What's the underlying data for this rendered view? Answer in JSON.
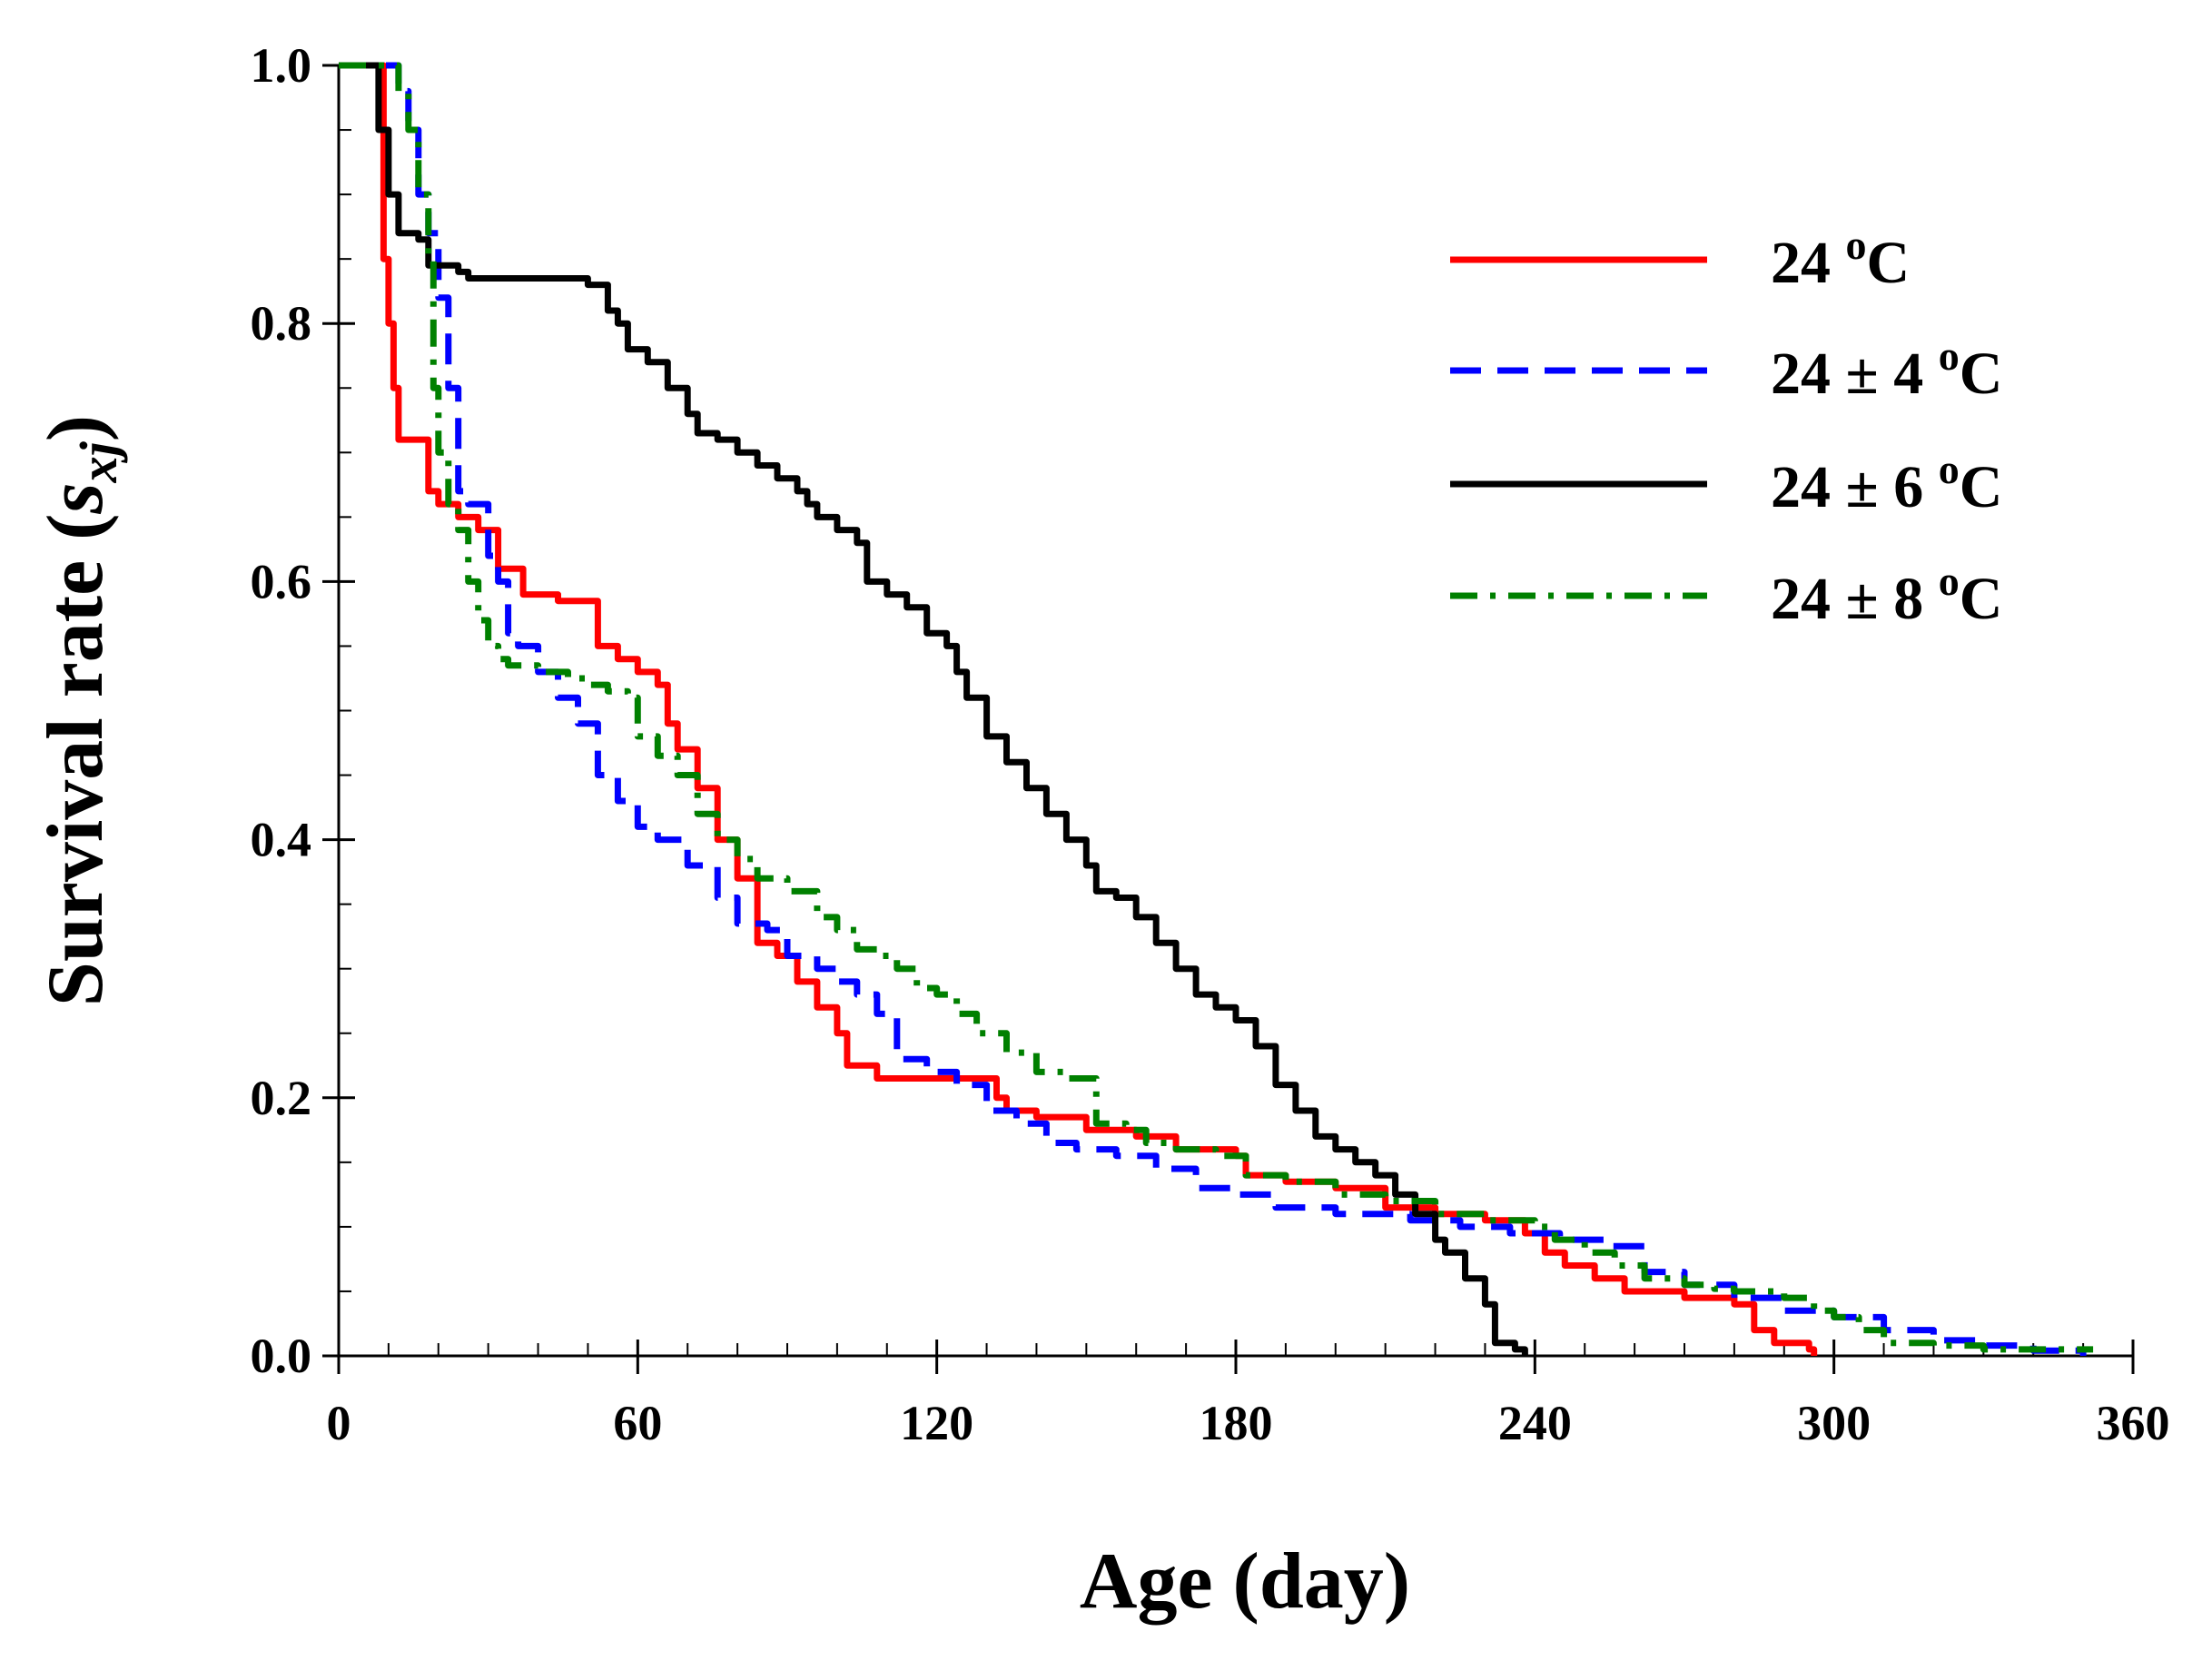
{
  "chart_data": {
    "type": "line",
    "title": "",
    "xlabel": "Age (day)",
    "ylabel": {
      "prefix": "Survival rate (",
      "symbol": "s",
      "subscript": "xj",
      "suffix": ")"
    },
    "xlim": [
      0,
      360
    ],
    "ylim": [
      0,
      1.0
    ],
    "x_ticks": [
      0,
      60,
      120,
      180,
      240,
      300,
      360
    ],
    "x_tick_labels": [
      "0",
      "60",
      "120",
      "180",
      "240",
      "300",
      "360"
    ],
    "y_ticks": [
      0.0,
      0.2,
      0.4,
      0.6,
      0.8,
      1.0
    ],
    "y_tick_labels": [
      "0.0",
      "0.2",
      "0.4",
      "0.6",
      "0.8",
      "1.0"
    ],
    "x_minor_step": 10,
    "y_minor_step": 0.05,
    "grid": false,
    "legend_position": "top-right",
    "series": [
      {
        "name": "24 oC",
        "label_main": "24 ",
        "label_sup": "o",
        "label_unit": "C",
        "color": "#ff0000",
        "dash": "solid",
        "points": [
          [
            0,
            1.0
          ],
          [
            8,
            1.0
          ],
          [
            9,
            0.85
          ],
          [
            10,
            0.8
          ],
          [
            11,
            0.75
          ],
          [
            12,
            0.71
          ],
          [
            17,
            0.71
          ],
          [
            18,
            0.67
          ],
          [
            20,
            0.66
          ],
          [
            24,
            0.65
          ],
          [
            28,
            0.64
          ],
          [
            32,
            0.61
          ],
          [
            37,
            0.59
          ],
          [
            42,
            0.59
          ],
          [
            44,
            0.585
          ],
          [
            50,
            0.585
          ],
          [
            52,
            0.55
          ],
          [
            56,
            0.54
          ],
          [
            60,
            0.53
          ],
          [
            64,
            0.52
          ],
          [
            66,
            0.49
          ],
          [
            68,
            0.47
          ],
          [
            72,
            0.44
          ],
          [
            76,
            0.4
          ],
          [
            80,
            0.37
          ],
          [
            84,
            0.32
          ],
          [
            88,
            0.31
          ],
          [
            92,
            0.29
          ],
          [
            96,
            0.27
          ],
          [
            100,
            0.25
          ],
          [
            102,
            0.225
          ],
          [
            108,
            0.215
          ],
          [
            130,
            0.215
          ],
          [
            132,
            0.2
          ],
          [
            134,
            0.19
          ],
          [
            140,
            0.185
          ],
          [
            150,
            0.175
          ],
          [
            160,
            0.17
          ],
          [
            168,
            0.16
          ],
          [
            180,
            0.155
          ],
          [
            182,
            0.14
          ],
          [
            190,
            0.135
          ],
          [
            200,
            0.13
          ],
          [
            210,
            0.115
          ],
          [
            220,
            0.11
          ],
          [
            230,
            0.105
          ],
          [
            238,
            0.095
          ],
          [
            242,
            0.08
          ],
          [
            246,
            0.07
          ],
          [
            252,
            0.06
          ],
          [
            258,
            0.05
          ],
          [
            270,
            0.045
          ],
          [
            280,
            0.04
          ],
          [
            284,
            0.02
          ],
          [
            288,
            0.01
          ],
          [
            295,
            0.005
          ],
          [
            296,
            0.0
          ]
        ]
      },
      {
        "name": "24 ± 4 oC",
        "label_main": "24 ± 4 ",
        "label_sup": "o",
        "label_unit": "C",
        "color": "#0000ff",
        "dash": "dashed",
        "points": [
          [
            0,
            1.0
          ],
          [
            10,
            1.0
          ],
          [
            12,
            0.98
          ],
          [
            14,
            0.95
          ],
          [
            16,
            0.9
          ],
          [
            18,
            0.87
          ],
          [
            20,
            0.82
          ],
          [
            22,
            0.75
          ],
          [
            24,
            0.67
          ],
          [
            26,
            0.66
          ],
          [
            30,
            0.62
          ],
          [
            32,
            0.6
          ],
          [
            34,
            0.56
          ],
          [
            36,
            0.55
          ],
          [
            40,
            0.53
          ],
          [
            44,
            0.51
          ],
          [
            48,
            0.49
          ],
          [
            52,
            0.45
          ],
          [
            56,
            0.43
          ],
          [
            60,
            0.41
          ],
          [
            64,
            0.4
          ],
          [
            70,
            0.38
          ],
          [
            76,
            0.355
          ],
          [
            80,
            0.335
          ],
          [
            86,
            0.33
          ],
          [
            90,
            0.31
          ],
          [
            96,
            0.3
          ],
          [
            100,
            0.29
          ],
          [
            104,
            0.28
          ],
          [
            108,
            0.265
          ],
          [
            112,
            0.23
          ],
          [
            118,
            0.22
          ],
          [
            124,
            0.21
          ],
          [
            130,
            0.19
          ],
          [
            136,
            0.18
          ],
          [
            142,
            0.165
          ],
          [
            148,
            0.16
          ],
          [
            156,
            0.155
          ],
          [
            164,
            0.145
          ],
          [
            172,
            0.13
          ],
          [
            180,
            0.125
          ],
          [
            188,
            0.115
          ],
          [
            200,
            0.11
          ],
          [
            215,
            0.105
          ],
          [
            225,
            0.1
          ],
          [
            235,
            0.095
          ],
          [
            245,
            0.09
          ],
          [
            255,
            0.085
          ],
          [
            262,
            0.065
          ],
          [
            270,
            0.055
          ],
          [
            280,
            0.045
          ],
          [
            290,
            0.035
          ],
          [
            300,
            0.03
          ],
          [
            310,
            0.02
          ],
          [
            320,
            0.012
          ],
          [
            330,
            0.008
          ],
          [
            340,
            0.004
          ],
          [
            350,
            0.0
          ]
        ]
      },
      {
        "name": "24 ± 6 oC",
        "label_main": "24 ± 6 ",
        "label_sup": "o",
        "label_unit": "C",
        "color": "#000000",
        "dash": "solid",
        "points": [
          [
            0,
            1.0
          ],
          [
            7,
            1.0
          ],
          [
            8,
            0.95
          ],
          [
            10,
            0.9
          ],
          [
            12,
            0.87
          ],
          [
            16,
            0.865
          ],
          [
            18,
            0.845
          ],
          [
            24,
            0.84
          ],
          [
            26,
            0.835
          ],
          [
            48,
            0.835
          ],
          [
            50,
            0.83
          ],
          [
            52,
            0.83
          ],
          [
            54,
            0.81
          ],
          [
            56,
            0.8
          ],
          [
            58,
            0.78
          ],
          [
            62,
            0.77
          ],
          [
            66,
            0.75
          ],
          [
            70,
            0.73
          ],
          [
            72,
            0.715
          ],
          [
            76,
            0.71
          ],
          [
            80,
            0.7
          ],
          [
            84,
            0.69
          ],
          [
            88,
            0.68
          ],
          [
            92,
            0.67
          ],
          [
            94,
            0.66
          ],
          [
            96,
            0.65
          ],
          [
            100,
            0.64
          ],
          [
            104,
            0.63
          ],
          [
            106,
            0.6
          ],
          [
            110,
            0.59
          ],
          [
            114,
            0.58
          ],
          [
            118,
            0.56
          ],
          [
            122,
            0.55
          ],
          [
            124,
            0.53
          ],
          [
            126,
            0.51
          ],
          [
            130,
            0.48
          ],
          [
            134,
            0.46
          ],
          [
            138,
            0.44
          ],
          [
            142,
            0.42
          ],
          [
            146,
            0.4
          ],
          [
            150,
            0.38
          ],
          [
            152,
            0.36
          ],
          [
            156,
            0.355
          ],
          [
            160,
            0.34
          ],
          [
            164,
            0.32
          ],
          [
            168,
            0.3
          ],
          [
            172,
            0.28
          ],
          [
            176,
            0.27
          ],
          [
            180,
            0.26
          ],
          [
            184,
            0.24
          ],
          [
            188,
            0.21
          ],
          [
            192,
            0.19
          ],
          [
            196,
            0.17
          ],
          [
            200,
            0.16
          ],
          [
            204,
            0.15
          ],
          [
            208,
            0.14
          ],
          [
            212,
            0.125
          ],
          [
            216,
            0.11
          ],
          [
            220,
            0.09
          ],
          [
            222,
            0.08
          ],
          [
            226,
            0.06
          ],
          [
            230,
            0.04
          ],
          [
            232,
            0.01
          ],
          [
            236,
            0.005
          ],
          [
            238,
            0.0
          ]
        ]
      },
      {
        "name": "24 ± 8 oC",
        "label_main": "24 ± 8 ",
        "label_sup": "o",
        "label_unit": "C",
        "color": "#008000",
        "dash": "dashdot",
        "points": [
          [
            0,
            1.0
          ],
          [
            10,
            1.0
          ],
          [
            12,
            0.98
          ],
          [
            14,
            0.95
          ],
          [
            16,
            0.9
          ],
          [
            18,
            0.85
          ],
          [
            19,
            0.75
          ],
          [
            20,
            0.7
          ],
          [
            22,
            0.66
          ],
          [
            24,
            0.64
          ],
          [
            26,
            0.6
          ],
          [
            28,
            0.57
          ],
          [
            30,
            0.55
          ],
          [
            32,
            0.54
          ],
          [
            34,
            0.535
          ],
          [
            40,
            0.53
          ],
          [
            46,
            0.525
          ],
          [
            50,
            0.52
          ],
          [
            54,
            0.515
          ],
          [
            58,
            0.51
          ],
          [
            60,
            0.48
          ],
          [
            64,
            0.465
          ],
          [
            68,
            0.45
          ],
          [
            72,
            0.42
          ],
          [
            76,
            0.4
          ],
          [
            80,
            0.385
          ],
          [
            84,
            0.37
          ],
          [
            90,
            0.36
          ],
          [
            96,
            0.34
          ],
          [
            100,
            0.33
          ],
          [
            104,
            0.315
          ],
          [
            108,
            0.31
          ],
          [
            112,
            0.3
          ],
          [
            116,
            0.285
          ],
          [
            120,
            0.28
          ],
          [
            124,
            0.265
          ],
          [
            128,
            0.25
          ],
          [
            134,
            0.235
          ],
          [
            140,
            0.22
          ],
          [
            146,
            0.215
          ],
          [
            152,
            0.18
          ],
          [
            158,
            0.175
          ],
          [
            162,
            0.165
          ],
          [
            168,
            0.16
          ],
          [
            176,
            0.155
          ],
          [
            182,
            0.14
          ],
          [
            190,
            0.135
          ],
          [
            200,
            0.125
          ],
          [
            210,
            0.12
          ],
          [
            220,
            0.11
          ],
          [
            230,
            0.105
          ],
          [
            240,
            0.1
          ],
          [
            244,
            0.09
          ],
          [
            250,
            0.08
          ],
          [
            256,
            0.07
          ],
          [
            262,
            0.06
          ],
          [
            270,
            0.055
          ],
          [
            276,
            0.052
          ],
          [
            280,
            0.05
          ],
          [
            290,
            0.045
          ],
          [
            296,
            0.035
          ],
          [
            300,
            0.03
          ],
          [
            305,
            0.02
          ],
          [
            310,
            0.01
          ],
          [
            320,
            0.008
          ],
          [
            330,
            0.005
          ],
          [
            340,
            0.005
          ],
          [
            352,
            0.005
          ]
        ]
      }
    ]
  }
}
